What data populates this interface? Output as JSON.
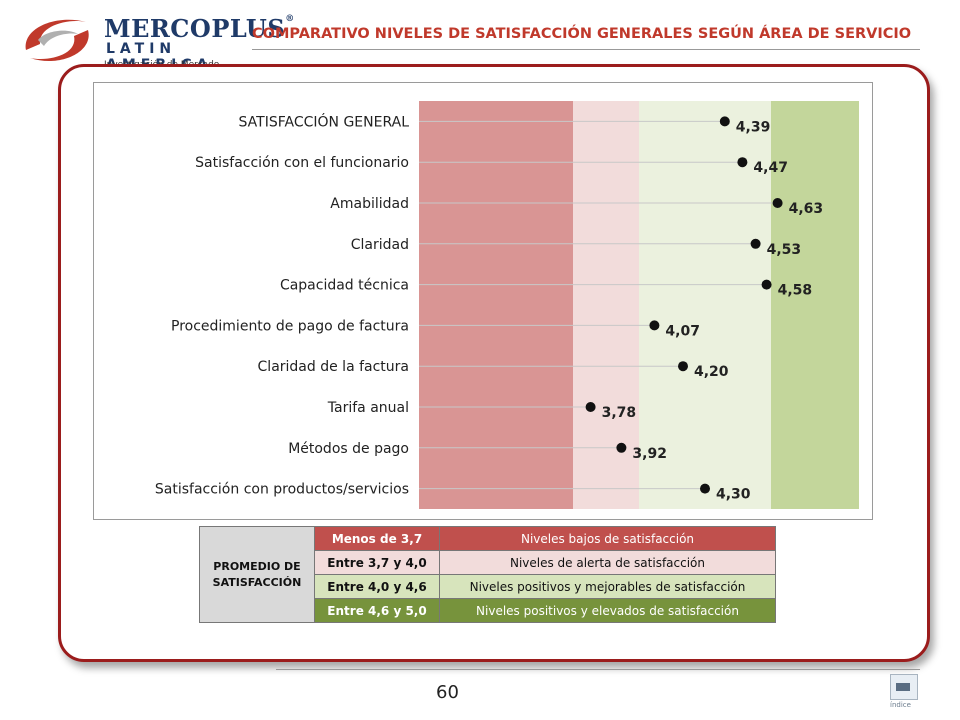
{
  "header": {
    "brand": "MERCOPLUS",
    "brand_reg": "®",
    "brand_sub": "LATIN AMERICA",
    "brand_tag": "Investigación de Mercado",
    "title": "COMPARATIVO NIVELES DE SATISFACCIÓN GENERALES SEGÚN ÁREA DE SERVICIO"
  },
  "chart_data": {
    "type": "scatter",
    "categories": [
      "SATISFACCIÓN GENERAL",
      "Satisfacción con el funcionario",
      "Amabilidad",
      "Claridad",
      "Capacidad técnica",
      "Procedimiento de pago de factura",
      "Claridad de la factura",
      "Tarifa anual",
      "Métodos de pago",
      "Satisfacción con productos/servicios"
    ],
    "values": [
      4.39,
      4.47,
      4.63,
      4.53,
      4.58,
      4.07,
      4.2,
      3.78,
      3.92,
      4.3
    ],
    "value_labels": [
      "4,39",
      "4,47",
      "4,63",
      "4,53",
      "4,58",
      "4,07",
      "4,20",
      "3,78",
      "3,92",
      "4,30"
    ],
    "xlim": [
      3.0,
      5.0
    ],
    "bands": [
      {
        "from": 3.0,
        "to": 3.7,
        "color": "#d99594"
      },
      {
        "from": 3.7,
        "to": 4.0,
        "color": "#f2dcdb"
      },
      {
        "from": 4.0,
        "to": 4.6,
        "color": "#ebf1de"
      },
      {
        "from": 4.6,
        "to": 5.0,
        "color": "#c3d69b"
      }
    ],
    "grid": true
  },
  "legend": {
    "heading": "PROMEDIO DE SATISFACCIÓN",
    "rows": [
      {
        "range": "Menos de 3,7",
        "desc": "Niveles bajos de satisfacción",
        "bg": "#c0504d",
        "fg": "#ffffff"
      },
      {
        "range": "Entre 3,7 y 4,0",
        "desc": "Niveles de alerta de satisfacción",
        "bg": "#f2dcdb",
        "fg": "#111111"
      },
      {
        "range": "Entre 4,0 y 4,6",
        "desc": "Niveles positivos y mejorables de satisfacción",
        "bg": "#d7e4bc",
        "fg": "#111111"
      },
      {
        "range": "Entre 4,6 y 5,0",
        "desc": "Niveles positivos y  elevados de satisfacción",
        "bg": "#77933c",
        "fg": "#ffffff"
      }
    ]
  },
  "footer": {
    "page_number": "60",
    "index_label": "índice"
  }
}
